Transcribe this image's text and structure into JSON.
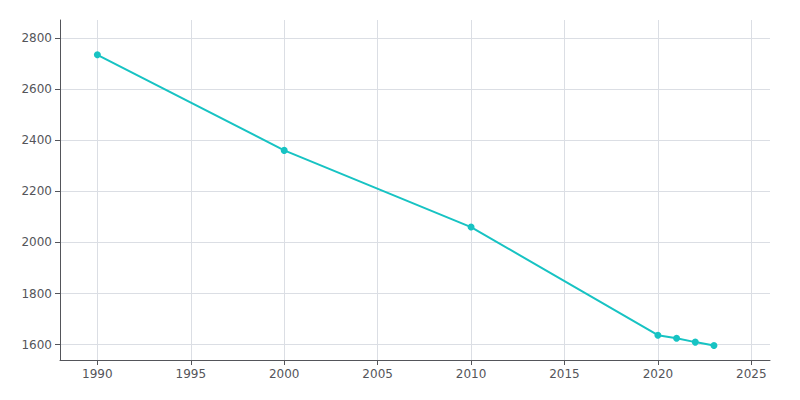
{
  "chart_data": {
    "type": "line",
    "x": [
      1990,
      2000,
      2010,
      2020,
      2021,
      2022,
      2023
    ],
    "values": [
      2734,
      2360,
      2060,
      1637,
      1625,
      1610,
      1597
    ],
    "color": "#17c3c3",
    "marker": "circle",
    "xlim": [
      1988,
      2026
    ],
    "xticks": [
      1990,
      1995,
      2000,
      2005,
      2010,
      2015,
      2020,
      2025
    ],
    "ylim": [
      1540,
      2870
    ],
    "yticks": [
      1600,
      1800,
      2000,
      2200,
      2400,
      2600,
      2800
    ],
    "grid": true
  }
}
